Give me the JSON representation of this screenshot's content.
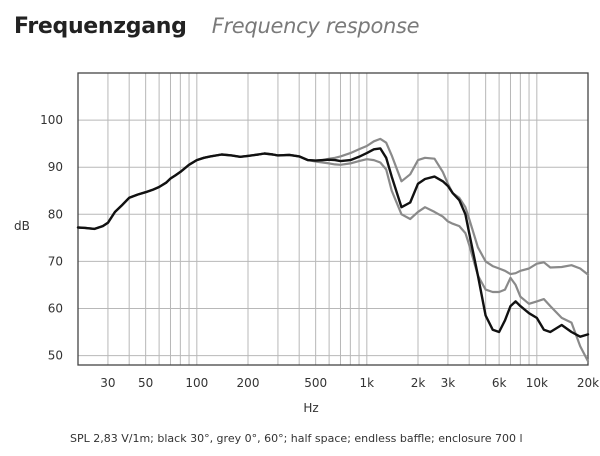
{
  "header": {
    "title": "Frequenzgang",
    "subtitle": "Frequency response"
  },
  "caption": "SPL 2,83 V/1m; black 30°, grey 0°, 60°; half space; endless baffle; enclosure 700 l",
  "chart_data": {
    "type": "line",
    "title": "Frequenzgang",
    "subtitle": "Frequency response",
    "xlabel": "Hz",
    "ylabel": "dB",
    "xscale": "log",
    "xlim": [
      20,
      20000
    ],
    "ylim": [
      48,
      110
    ],
    "x_ticks": [
      30,
      50,
      100,
      200,
      500,
      1000,
      2000,
      3000,
      6000,
      10000,
      20000
    ],
    "x_tick_labels": [
      "30",
      "50",
      "100",
      "200",
      "500",
      "1k",
      "2k",
      "3k",
      "6k",
      "10k",
      "20k"
    ],
    "y_ticks": [
      50,
      60,
      70,
      80,
      90,
      100
    ],
    "y_tick_labels": [
      "50",
      "60",
      "70",
      "80",
      "90",
      "100"
    ],
    "grid": true,
    "colors": {
      "black_curve": "#111111",
      "grey_curve": "#8a8a8a",
      "grid": "#b8b8b8",
      "frame": "#444444"
    },
    "series": [
      {
        "color": "#8a8a8a",
        "x": [
          20,
          22,
          25,
          28,
          30,
          33,
          36,
          40,
          45,
          50,
          55,
          60,
          66,
          70,
          75,
          80,
          90,
          100,
          110,
          120,
          140,
          160,
          180,
          200,
          230,
          250,
          280,
          300,
          350,
          400,
          450,
          500,
          550,
          600,
          650,
          700,
          800,
          900,
          1000,
          1100,
          1200,
          1300,
          1400,
          1600,
          1800,
          2000,
          2200,
          2500,
          2800,
          3000,
          3200,
          3500,
          3800,
          4000,
          4500,
          5000,
          5500,
          6000,
          6500,
          7000,
          7500,
          8000,
          9000,
          10000,
          11000,
          12000,
          14000,
          16000,
          18000,
          20000
        ],
        "values": [
          77.2,
          77.1,
          76.9,
          77.5,
          78.2,
          80.5,
          81.8,
          83.5,
          84.2,
          84.7,
          85.2,
          85.8,
          86.7,
          87.6,
          88.3,
          89.0,
          90.5,
          91.5,
          92.0,
          92.3,
          92.7,
          92.5,
          92.2,
          92.4,
          92.7,
          92.9,
          92.7,
          92.5,
          92.6,
          92.3,
          91.5,
          91.4,
          91.5,
          91.8,
          92.0,
          92.3,
          93.0,
          93.8,
          94.5,
          95.5,
          96.0,
          95.2,
          92.5,
          87.0,
          88.5,
          91.5,
          92.0,
          91.8,
          89.0,
          86.5,
          84.5,
          83.5,
          81.5,
          79.0,
          73.0,
          70.0,
          69.0,
          68.5,
          68.0,
          67.3,
          67.5,
          68.0,
          68.5,
          69.5,
          69.8,
          68.7,
          68.8,
          69.2,
          68.5,
          67.2
        ]
      },
      {
        "color": "#8a8a8a",
        "x": [
          20,
          22,
          25,
          28,
          30,
          33,
          36,
          40,
          45,
          50,
          55,
          60,
          66,
          70,
          75,
          80,
          90,
          100,
          110,
          120,
          140,
          160,
          180,
          200,
          230,
          250,
          280,
          300,
          350,
          400,
          450,
          500,
          550,
          600,
          650,
          700,
          800,
          900,
          1000,
          1100,
          1200,
          1300,
          1400,
          1600,
          1800,
          2000,
          2200,
          2500,
          2800,
          3000,
          3200,
          3500,
          3800,
          4000,
          4500,
          5000,
          5500,
          6000,
          6500,
          7000,
          7500,
          8000,
          9000,
          10000,
          11000,
          12000,
          14000,
          16000,
          18000,
          20000
        ],
        "values": [
          77.2,
          77.1,
          76.9,
          77.5,
          78.2,
          80.5,
          81.8,
          83.5,
          84.2,
          84.7,
          85.2,
          85.8,
          86.7,
          87.6,
          88.3,
          89.0,
          90.5,
          91.5,
          92.0,
          92.3,
          92.7,
          92.5,
          92.2,
          92.4,
          92.7,
          92.9,
          92.7,
          92.5,
          92.6,
          92.3,
          91.5,
          91.2,
          91.0,
          90.8,
          90.6,
          90.5,
          90.8,
          91.3,
          91.7,
          91.5,
          91.0,
          89.5,
          85.0,
          80.0,
          79.0,
          80.5,
          81.5,
          80.5,
          79.5,
          78.5,
          78.0,
          77.5,
          76.0,
          73.5,
          67.0,
          64.0,
          63.5,
          63.5,
          64.0,
          66.5,
          65.0,
          62.5,
          61.0,
          61.5,
          62.0,
          60.5,
          58.0,
          57.0,
          52.0,
          48.8
        ]
      },
      {
        "color": "#111111",
        "x": [
          20,
          22,
          25,
          28,
          30,
          33,
          36,
          40,
          45,
          50,
          55,
          60,
          66,
          70,
          75,
          80,
          90,
          100,
          110,
          120,
          140,
          160,
          180,
          200,
          230,
          250,
          280,
          300,
          350,
          400,
          450,
          500,
          550,
          600,
          650,
          700,
          800,
          900,
          1000,
          1100,
          1200,
          1300,
          1400,
          1600,
          1800,
          2000,
          2200,
          2500,
          2800,
          3000,
          3200,
          3500,
          3800,
          4000,
          4500,
          5000,
          5500,
          6000,
          6500,
          7000,
          7500,
          8000,
          9000,
          10000,
          11000,
          12000,
          14000,
          16000,
          18000,
          20000
        ],
        "values": [
          77.2,
          77.1,
          76.9,
          77.5,
          78.2,
          80.5,
          81.8,
          83.5,
          84.2,
          84.7,
          85.2,
          85.8,
          86.7,
          87.6,
          88.3,
          89.0,
          90.5,
          91.5,
          92.0,
          92.3,
          92.7,
          92.5,
          92.2,
          92.4,
          92.7,
          92.9,
          92.7,
          92.5,
          92.6,
          92.3,
          91.5,
          91.4,
          91.5,
          91.6,
          91.5,
          91.3,
          91.5,
          92.2,
          93.0,
          93.8,
          94.0,
          92.0,
          88.0,
          81.5,
          82.5,
          86.5,
          87.5,
          88.0,
          87.0,
          86.0,
          84.5,
          83.0,
          80.0,
          76.0,
          67.0,
          58.5,
          55.5,
          55.0,
          57.5,
          60.5,
          61.5,
          60.5,
          59.0,
          58.0,
          55.5,
          55.0,
          56.5,
          55.0,
          54.0,
          54.5
        ]
      }
    ]
  }
}
